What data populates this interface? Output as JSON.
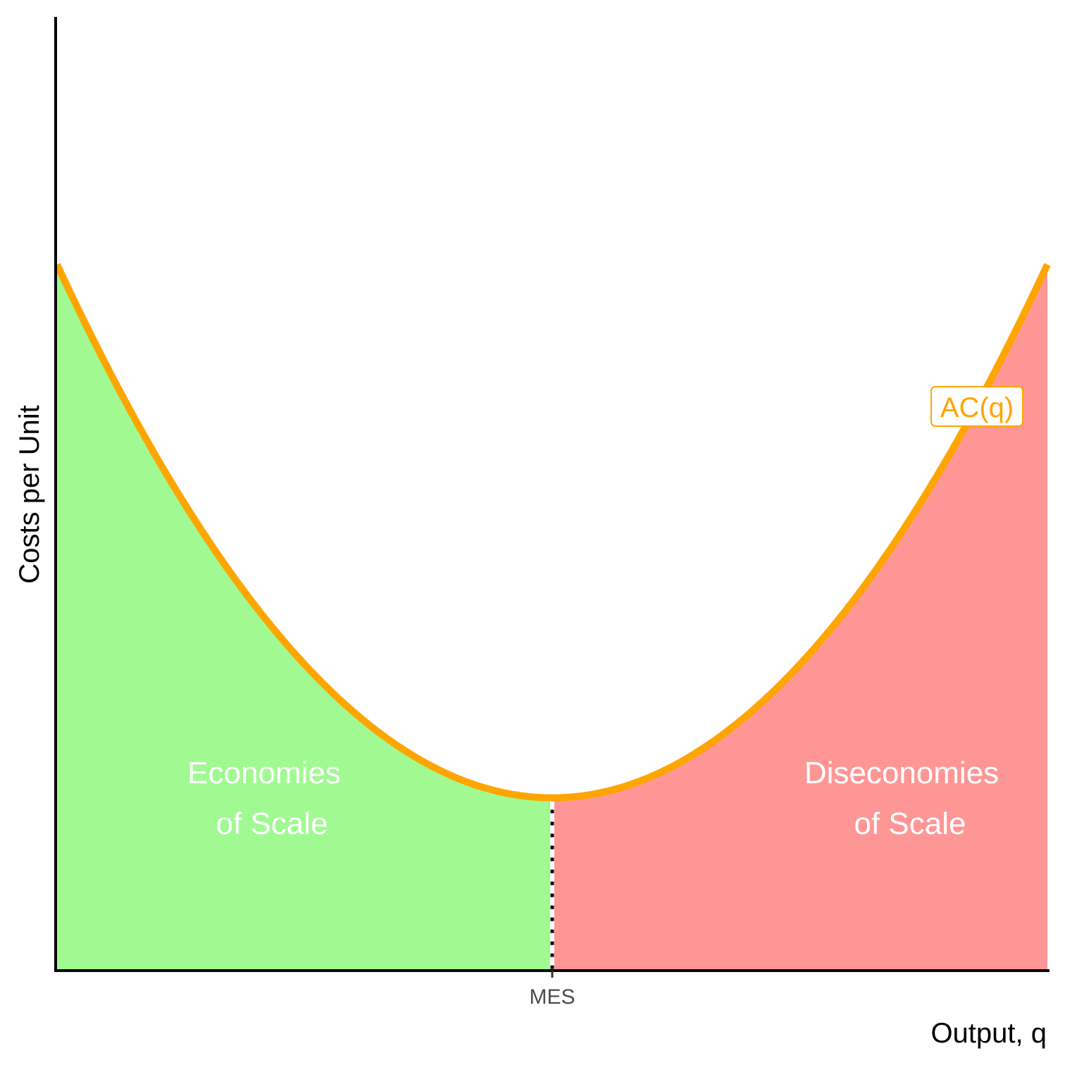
{
  "chart_data": {
    "type": "area",
    "xlabel": "Output, q",
    "ylabel": "Costs per Unit",
    "xlim": [
      0,
      1
    ],
    "ylim": [
      0,
      1
    ],
    "curve": {
      "name": "AC(q)",
      "color": "#FFA500",
      "min_x": 0.5,
      "min_y": 0.18,
      "end_y": 0.74
    },
    "x_ticks": [
      {
        "value": 0.5,
        "label": "MES"
      }
    ],
    "regions": [
      {
        "name": "economies",
        "label_lines": [
          "Economies",
          "of Scale"
        ],
        "color": "#A0FA91",
        "x_range": [
          0,
          0.5
        ]
      },
      {
        "name": "diseconomies",
        "label_lines": [
          "Diseconomies",
          "of Scale"
        ],
        "color": "#FF9696",
        "x_range": [
          0.5,
          1
        ]
      }
    ],
    "mes_line": {
      "x": 0.5,
      "style": "dotted"
    },
    "grid": false,
    "legend": "none"
  }
}
